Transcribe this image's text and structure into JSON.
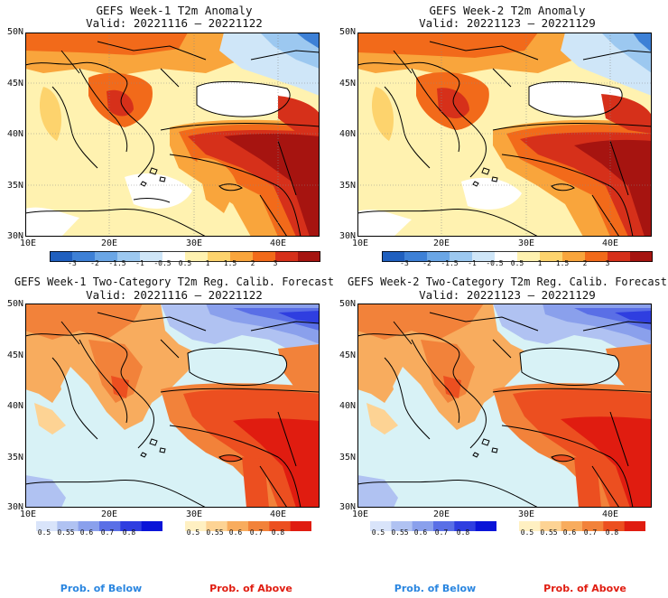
{
  "panels": [
    {
      "title": "GEFS Week-1 T2m Anomaly",
      "valid": "Valid: 20221116 – 20221122"
    },
    {
      "title": "GEFS Week-2 T2m Anomaly",
      "valid": "Valid: 20221123 – 20221129"
    },
    {
      "title": "GEFS Week-1 Two-Category T2m Reg. Calib. Forecast",
      "valid": "Valid: 20221116 – 20221122"
    },
    {
      "title": "GEFS Week-2 Two-Category T2m Reg. Calib. Forecast",
      "valid": "Valid: 20221123 – 20221129"
    }
  ],
  "axes": {
    "lat_labels": [
      "50N",
      "45N",
      "40N",
      "35N",
      "30N"
    ],
    "lon_labels": [
      "10E",
      "20E",
      "30E",
      "40E"
    ]
  },
  "anomaly_colorbar": {
    "labels": [
      "-3",
      "-2",
      "-1.5",
      "-1",
      "-0.5",
      "0.5",
      "1",
      "1.5",
      "2",
      "3"
    ],
    "colors": [
      "#1f5fbf",
      "#3d80d6",
      "#6aa6e6",
      "#9cc8f0",
      "#cfe6f8",
      "#ffffff",
      "#fff2b0",
      "#fdd36d",
      "#f9a53c",
      "#f26a1a",
      "#d6301a",
      "#a61410"
    ]
  },
  "prob_below_colorbar": {
    "labels": [
      "0.5",
      "0.55",
      "0.6",
      "0.7",
      "0.8"
    ],
    "colors": [
      "#d9e4fa",
      "#b0c2f2",
      "#8aa0ec",
      "#5a6fe6",
      "#2f3ee0",
      "#0a14d8"
    ]
  },
  "prob_above_colorbar": {
    "labels": [
      "0.5",
      "0.55",
      "0.6",
      "0.7",
      "0.8"
    ],
    "colors": [
      "#fff0c2",
      "#fdd394",
      "#f8ac5e",
      "#f2823a",
      "#ec4f20",
      "#e01c10"
    ]
  },
  "prob_labels": {
    "below": "Prob. of Below",
    "above": "Prob. of Above",
    "below_color": "#2a86e0",
    "above_color": "#e01c10"
  },
  "map_colors": {
    "sea_light": "#d8f2f6",
    "sea_white": "#ffffff"
  }
}
